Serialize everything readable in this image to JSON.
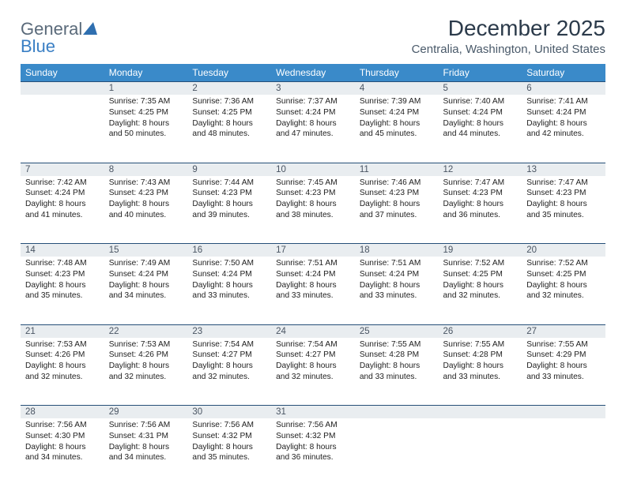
{
  "logo": {
    "word1": "General",
    "word2": "Blue"
  },
  "title": "December 2025",
  "location": "Centralia, Washington, United States",
  "colors": {
    "header_bg": "#3a8ac9",
    "header_text": "#ffffff",
    "daynum_bg": "#e9edf0",
    "rule": "#264f78"
  },
  "weekdays": [
    "Sunday",
    "Monday",
    "Tuesday",
    "Wednesday",
    "Thursday",
    "Friday",
    "Saturday"
  ],
  "weeks": [
    {
      "nums": [
        "",
        "1",
        "2",
        "3",
        "4",
        "5",
        "6"
      ],
      "cells": [
        null,
        {
          "sr": "Sunrise: 7:35 AM",
          "ss": "Sunset: 4:25 PM",
          "d1": "Daylight: 8 hours",
          "d2": "and 50 minutes."
        },
        {
          "sr": "Sunrise: 7:36 AM",
          "ss": "Sunset: 4:25 PM",
          "d1": "Daylight: 8 hours",
          "d2": "and 48 minutes."
        },
        {
          "sr": "Sunrise: 7:37 AM",
          "ss": "Sunset: 4:24 PM",
          "d1": "Daylight: 8 hours",
          "d2": "and 47 minutes."
        },
        {
          "sr": "Sunrise: 7:39 AM",
          "ss": "Sunset: 4:24 PM",
          "d1": "Daylight: 8 hours",
          "d2": "and 45 minutes."
        },
        {
          "sr": "Sunrise: 7:40 AM",
          "ss": "Sunset: 4:24 PM",
          "d1": "Daylight: 8 hours",
          "d2": "and 44 minutes."
        },
        {
          "sr": "Sunrise: 7:41 AM",
          "ss": "Sunset: 4:24 PM",
          "d1": "Daylight: 8 hours",
          "d2": "and 42 minutes."
        }
      ]
    },
    {
      "nums": [
        "7",
        "8",
        "9",
        "10",
        "11",
        "12",
        "13"
      ],
      "cells": [
        {
          "sr": "Sunrise: 7:42 AM",
          "ss": "Sunset: 4:24 PM",
          "d1": "Daylight: 8 hours",
          "d2": "and 41 minutes."
        },
        {
          "sr": "Sunrise: 7:43 AM",
          "ss": "Sunset: 4:23 PM",
          "d1": "Daylight: 8 hours",
          "d2": "and 40 minutes."
        },
        {
          "sr": "Sunrise: 7:44 AM",
          "ss": "Sunset: 4:23 PM",
          "d1": "Daylight: 8 hours",
          "d2": "and 39 minutes."
        },
        {
          "sr": "Sunrise: 7:45 AM",
          "ss": "Sunset: 4:23 PM",
          "d1": "Daylight: 8 hours",
          "d2": "and 38 minutes."
        },
        {
          "sr": "Sunrise: 7:46 AM",
          "ss": "Sunset: 4:23 PM",
          "d1": "Daylight: 8 hours",
          "d2": "and 37 minutes."
        },
        {
          "sr": "Sunrise: 7:47 AM",
          "ss": "Sunset: 4:23 PM",
          "d1": "Daylight: 8 hours",
          "d2": "and 36 minutes."
        },
        {
          "sr": "Sunrise: 7:47 AM",
          "ss": "Sunset: 4:23 PM",
          "d1": "Daylight: 8 hours",
          "d2": "and 35 minutes."
        }
      ]
    },
    {
      "nums": [
        "14",
        "15",
        "16",
        "17",
        "18",
        "19",
        "20"
      ],
      "cells": [
        {
          "sr": "Sunrise: 7:48 AM",
          "ss": "Sunset: 4:23 PM",
          "d1": "Daylight: 8 hours",
          "d2": "and 35 minutes."
        },
        {
          "sr": "Sunrise: 7:49 AM",
          "ss": "Sunset: 4:24 PM",
          "d1": "Daylight: 8 hours",
          "d2": "and 34 minutes."
        },
        {
          "sr": "Sunrise: 7:50 AM",
          "ss": "Sunset: 4:24 PM",
          "d1": "Daylight: 8 hours",
          "d2": "and 33 minutes."
        },
        {
          "sr": "Sunrise: 7:51 AM",
          "ss": "Sunset: 4:24 PM",
          "d1": "Daylight: 8 hours",
          "d2": "and 33 minutes."
        },
        {
          "sr": "Sunrise: 7:51 AM",
          "ss": "Sunset: 4:24 PM",
          "d1": "Daylight: 8 hours",
          "d2": "and 33 minutes."
        },
        {
          "sr": "Sunrise: 7:52 AM",
          "ss": "Sunset: 4:25 PM",
          "d1": "Daylight: 8 hours",
          "d2": "and 32 minutes."
        },
        {
          "sr": "Sunrise: 7:52 AM",
          "ss": "Sunset: 4:25 PM",
          "d1": "Daylight: 8 hours",
          "d2": "and 32 minutes."
        }
      ]
    },
    {
      "nums": [
        "21",
        "22",
        "23",
        "24",
        "25",
        "26",
        "27"
      ],
      "cells": [
        {
          "sr": "Sunrise: 7:53 AM",
          "ss": "Sunset: 4:26 PM",
          "d1": "Daylight: 8 hours",
          "d2": "and 32 minutes."
        },
        {
          "sr": "Sunrise: 7:53 AM",
          "ss": "Sunset: 4:26 PM",
          "d1": "Daylight: 8 hours",
          "d2": "and 32 minutes."
        },
        {
          "sr": "Sunrise: 7:54 AM",
          "ss": "Sunset: 4:27 PM",
          "d1": "Daylight: 8 hours",
          "d2": "and 32 minutes."
        },
        {
          "sr": "Sunrise: 7:54 AM",
          "ss": "Sunset: 4:27 PM",
          "d1": "Daylight: 8 hours",
          "d2": "and 32 minutes."
        },
        {
          "sr": "Sunrise: 7:55 AM",
          "ss": "Sunset: 4:28 PM",
          "d1": "Daylight: 8 hours",
          "d2": "and 33 minutes."
        },
        {
          "sr": "Sunrise: 7:55 AM",
          "ss": "Sunset: 4:28 PM",
          "d1": "Daylight: 8 hours",
          "d2": "and 33 minutes."
        },
        {
          "sr": "Sunrise: 7:55 AM",
          "ss": "Sunset: 4:29 PM",
          "d1": "Daylight: 8 hours",
          "d2": "and 33 minutes."
        }
      ]
    },
    {
      "nums": [
        "28",
        "29",
        "30",
        "31",
        "",
        "",
        ""
      ],
      "cells": [
        {
          "sr": "Sunrise: 7:56 AM",
          "ss": "Sunset: 4:30 PM",
          "d1": "Daylight: 8 hours",
          "d2": "and 34 minutes."
        },
        {
          "sr": "Sunrise: 7:56 AM",
          "ss": "Sunset: 4:31 PM",
          "d1": "Daylight: 8 hours",
          "d2": "and 34 minutes."
        },
        {
          "sr": "Sunrise: 7:56 AM",
          "ss": "Sunset: 4:32 PM",
          "d1": "Daylight: 8 hours",
          "d2": "and 35 minutes."
        },
        {
          "sr": "Sunrise: 7:56 AM",
          "ss": "Sunset: 4:32 PM",
          "d1": "Daylight: 8 hours",
          "d2": "and 36 minutes."
        },
        null,
        null,
        null
      ]
    }
  ]
}
